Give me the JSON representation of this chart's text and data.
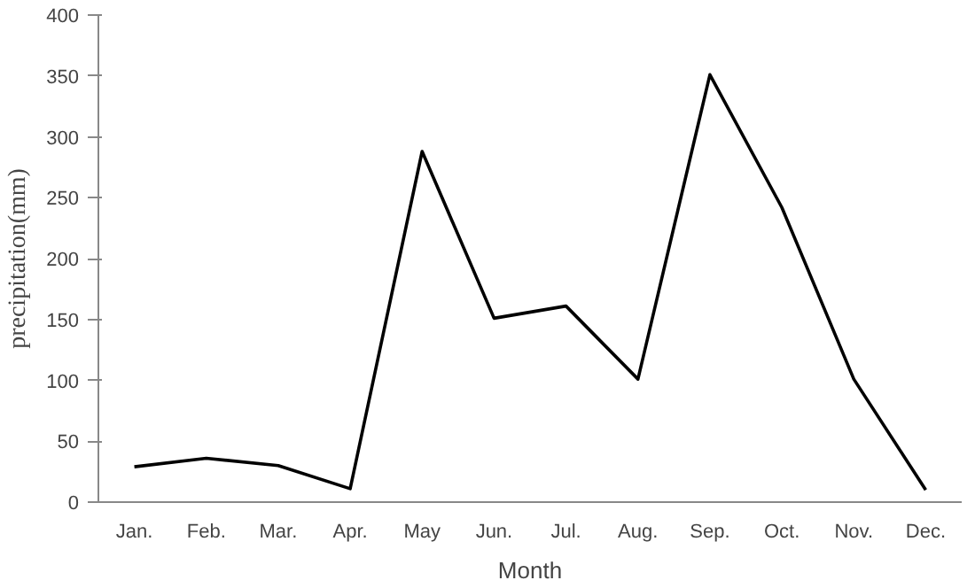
{
  "chart_data": {
    "type": "line",
    "xlabel": "Month",
    "ylabel": "precipitation(mm)",
    "categories": [
      "Jan.",
      "Feb.",
      "Mar.",
      "Apr.",
      "May",
      "Jun.",
      "Jul.",
      "Aug.",
      "Sep.",
      "Oct.",
      "Nov.",
      "Dec."
    ],
    "series": [
      {
        "color": "#000000",
        "values": [
          29,
          36,
          30,
          11,
          288,
          151,
          161,
          101,
          351,
          242,
          101,
          10
        ]
      }
    ],
    "ylim": [
      0,
      400
    ],
    "yticks": [
      0,
      50,
      100,
      150,
      200,
      250,
      300,
      350,
      400
    ],
    "grid": false,
    "marker": "none",
    "line_style": "solid"
  }
}
